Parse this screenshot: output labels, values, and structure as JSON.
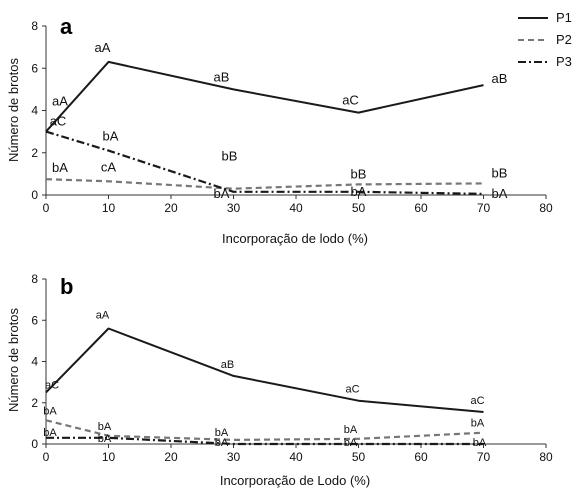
{
  "legend": [
    {
      "name": "P1",
      "color": "#1a1a1a",
      "dash": "solid"
    },
    {
      "name": "P2",
      "color": "#777777",
      "dash": "dashed"
    },
    {
      "name": "P3",
      "color": "#1a1a1a",
      "dash": "dashdot"
    }
  ],
  "chart_data": [
    {
      "type": "line",
      "panel": "a",
      "xlabel": "Incorporação de lodo (%)",
      "ylabel": "Número de brotos",
      "xlim": [
        0,
        80
      ],
      "ylim": [
        0,
        8
      ],
      "xticks": [
        0,
        10,
        20,
        30,
        40,
        50,
        60,
        70,
        80
      ],
      "yticks": [
        0,
        2,
        4,
        6,
        8
      ],
      "x": [
        0,
        10,
        30,
        50,
        70
      ],
      "series": [
        {
          "name": "P1",
          "values": [
            3.0,
            6.3,
            5.0,
            3.9,
            5.2
          ],
          "labels": [
            "aA",
            "aA",
            "aB",
            "aC",
            "aB"
          ]
        },
        {
          "name": "P2",
          "values": [
            0.75,
            0.65,
            0.3,
            0.5,
            0.55
          ],
          "labels": [
            "bA",
            "cA",
            "bB",
            "bB",
            "bB"
          ]
        },
        {
          "name": "P3",
          "values": [
            3.0,
            2.1,
            0.15,
            0.15,
            0.05
          ],
          "labels": [
            "aC",
            "bA",
            "bA",
            "bA",
            "bA"
          ]
        }
      ]
    },
    {
      "type": "line",
      "panel": "b",
      "xlabel": "Incorporação de Lodo (%)",
      "ylabel": "Número de brotos",
      "xlim": [
        0,
        80
      ],
      "ylim": [
        0,
        8
      ],
      "xticks": [
        0,
        10,
        20,
        30,
        40,
        50,
        60,
        70,
        80
      ],
      "yticks": [
        0,
        2,
        4,
        6,
        8
      ],
      "x": [
        0,
        10,
        30,
        50,
        70
      ],
      "series": [
        {
          "name": "P1",
          "values": [
            2.5,
            5.6,
            3.3,
            2.1,
            1.55
          ],
          "labels": [
            "aC",
            "aA",
            "aB",
            "aC",
            "aC"
          ]
        },
        {
          "name": "P2",
          "values": [
            1.15,
            0.4,
            0.2,
            0.25,
            0.55
          ],
          "labels": [
            "bA",
            "bA",
            "bA",
            "bA",
            "bA"
          ]
        },
        {
          "name": "P3",
          "values": [
            0.3,
            0.3,
            0.0,
            0.0,
            0.0
          ],
          "labels": [
            "bA",
            "bA",
            "bA",
            "bA",
            "bA"
          ]
        }
      ]
    }
  ]
}
